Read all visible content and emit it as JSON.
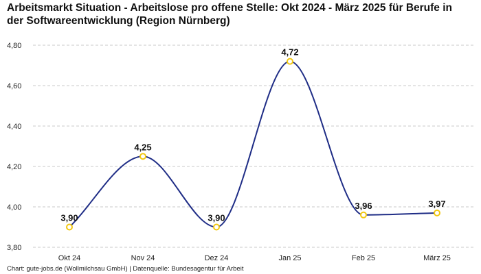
{
  "chart_data": {
    "type": "line",
    "title": "Arbeitsmarkt Situation - Arbeitslose pro offene Stelle: Okt 2024 - März 2025 für Berufe in der Softwareentwicklung (Region Nürnberg)",
    "xlabel": "",
    "ylabel": "",
    "categories": [
      "Okt 24",
      "Nov 24",
      "Dez 24",
      "Jan 25",
      "Feb 25",
      "März 25"
    ],
    "series": [
      {
        "values": [
          3.9,
          4.25,
          3.9,
          4.72,
          3.96,
          3.97
        ],
        "labels": [
          "3,90",
          "4,25",
          "3,90",
          "4,72",
          "3,96",
          "3,97"
        ]
      }
    ],
    "ylim": [
      3.8,
      4.8
    ],
    "yticks": [
      3.8,
      4.0,
      4.2,
      4.4,
      4.6,
      4.8
    ],
    "ytick_labels": [
      "3,80",
      "4,00",
      "4,20",
      "4,40",
      "4,60",
      "4,80"
    ],
    "grid": true,
    "smooth": true,
    "colors": {
      "line": "#1f2d86",
      "marker": "#f2c811",
      "grid": "#c8c8c8"
    },
    "source": "Chart: gute-jobs.de (Wollmilchsau GmbH) | Datenquelle: Bundesagentur für Arbeit"
  }
}
